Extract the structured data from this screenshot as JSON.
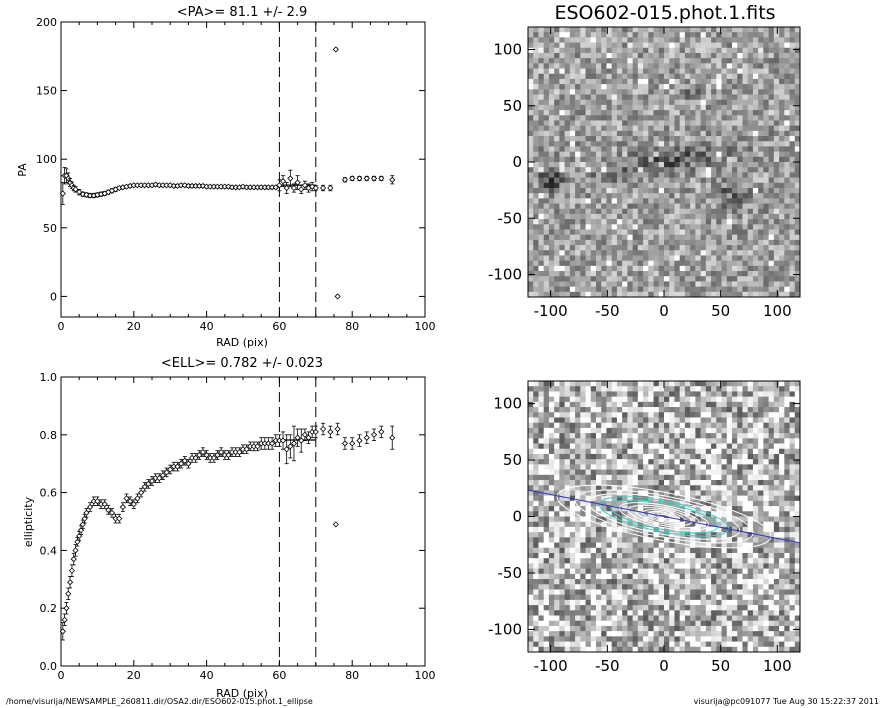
{
  "footer": {
    "left": "/home/visurija/NEWSAMPLE_260811.dir/OSA2.dir/ESO602-015.phot.1_ellipse",
    "right": "visurija@pc091077  Tue Aug 30 15:22:37 2011"
  },
  "colors": {
    "axis": "#000000",
    "marker": "#000000",
    "contour_cyan": "#40d0c8",
    "major_axis_line": "#3030c0"
  },
  "chart_data": [
    {
      "type": "scatter",
      "title": "<PA>=  81.1 +/-   2.9",
      "xlabel": "RAD (pix)",
      "ylabel": "PA",
      "xlim": [
        0,
        100
      ],
      "ylim": [
        -15,
        200
      ],
      "xticks": [
        0,
        20,
        40,
        60,
        80,
        100
      ],
      "yticks": [
        0,
        50,
        100,
        150,
        200
      ],
      "xtick_labels": [
        "0",
        "20",
        "40",
        "60",
        "80",
        "100"
      ],
      "ytick_labels": [
        "0",
        "50",
        "100",
        "150",
        "200"
      ],
      "vlines": [
        60,
        70
      ],
      "hline_segment": {
        "x": [
          60,
          70
        ],
        "y": 81.1
      },
      "series": [
        {
          "x": [
            0.5,
            1,
            1.5,
            2,
            2.5,
            3,
            3.5,
            4,
            5,
            6,
            7,
            8,
            9,
            10,
            11,
            12,
            13,
            14,
            15,
            16,
            17,
            18,
            19,
            20,
            21,
            22,
            23,
            24,
            25,
            26,
            27,
            28,
            29,
            30,
            31,
            32,
            33,
            34,
            35,
            36,
            37,
            38,
            39,
            40,
            41,
            42,
            43,
            44,
            45,
            46,
            47,
            48,
            49,
            50,
            51,
            52,
            53,
            54,
            55,
            56,
            57,
            58,
            59,
            60,
            61,
            62,
            63,
            64,
            65,
            66,
            67,
            68,
            69,
            70,
            72,
            74,
            75.5,
            76,
            78,
            80,
            82,
            84,
            86,
            88,
            91
          ],
          "y": [
            75,
            88,
            88,
            86,
            83,
            81,
            79,
            78,
            76,
            74.5,
            74,
            73.5,
            73.5,
            74,
            74.5,
            75,
            76,
            77,
            78,
            79,
            79.5,
            80,
            80.5,
            81,
            81,
            81,
            81,
            81,
            81,
            81.5,
            81,
            81,
            81,
            81,
            80.5,
            80.5,
            81,
            81,
            80.5,
            80.5,
            80.5,
            80.5,
            80.5,
            80,
            80,
            80,
            80,
            80,
            80,
            80,
            79.5,
            79.5,
            79.5,
            80,
            79.5,
            79.5,
            79.5,
            79.5,
            79.5,
            79.5,
            79.5,
            79.5,
            79.5,
            81,
            84,
            79,
            86,
            79,
            83,
            78,
            81,
            79,
            80,
            79,
            79,
            79,
            180,
            0,
            85,
            86,
            86,
            86,
            86,
            86,
            85
          ],
          "err": [
            8,
            6,
            5,
            4,
            3,
            2.5,
            2,
            2,
            2,
            1.5,
            1.5,
            1.5,
            1.5,
            1.5,
            1.5,
            1.5,
            1.5,
            1.5,
            1.5,
            1,
            1,
            1,
            1,
            1,
            1,
            1,
            1,
            1,
            1,
            1,
            1,
            1,
            1,
            1,
            1,
            1,
            1,
            1,
            1,
            1,
            1,
            1,
            1,
            1,
            1,
            1,
            1,
            1,
            1,
            1,
            1,
            1,
            1,
            1,
            1,
            1,
            1,
            1,
            1,
            1,
            1,
            1,
            1,
            4,
            4,
            4,
            6,
            3,
            5,
            3,
            3,
            3,
            3,
            2,
            2,
            2,
            0,
            0,
            1.5,
            1.5,
            1.5,
            1.5,
            1.5,
            1.5,
            3
          ]
        }
      ]
    },
    {
      "type": "scatter",
      "title": "<ELL>= 0.782 +/-  0.023",
      "xlabel": "RAD (pix)",
      "ylabel": "ellipticity",
      "xlim": [
        0,
        100
      ],
      "ylim": [
        0,
        1
      ],
      "xticks": [
        0,
        20,
        40,
        60,
        80,
        100
      ],
      "yticks": [
        0,
        0.2,
        0.4,
        0.6,
        0.8,
        1.0
      ],
      "xtick_labels": [
        "0",
        "20",
        "40",
        "60",
        "80",
        "100"
      ],
      "ytick_labels": [
        "0.0",
        "0.2",
        "0.4",
        "0.6",
        "0.8",
        "1.0"
      ],
      "vlines": [
        60,
        70
      ],
      "hline_segment": {
        "x": [
          60,
          70
        ],
        "y": 0.782
      },
      "series": [
        {
          "x": [
            0.5,
            1,
            1.5,
            2,
            2.5,
            3,
            3.5,
            4,
            4.5,
            5,
            5.5,
            6,
            6.5,
            7,
            8,
            9,
            10,
            11,
            12,
            13,
            14,
            15,
            16,
            17,
            18,
            19,
            20,
            21,
            22,
            23,
            24,
            25,
            26,
            27,
            28,
            29,
            30,
            31,
            32,
            33,
            34,
            35,
            36,
            37,
            38,
            39,
            40,
            41,
            42,
            43,
            44,
            45,
            46,
            47,
            48,
            49,
            50,
            51,
            52,
            53,
            54,
            55,
            56,
            57,
            58,
            59,
            60,
            61,
            62,
            63,
            64,
            65,
            66,
            67,
            68,
            69,
            70,
            72,
            74,
            75.5,
            76,
            78,
            80,
            82,
            84,
            86,
            88,
            91
          ],
          "y": [
            0.12,
            0.16,
            0.2,
            0.25,
            0.29,
            0.33,
            0.37,
            0.4,
            0.43,
            0.45,
            0.47,
            0.49,
            0.51,
            0.53,
            0.55,
            0.57,
            0.57,
            0.56,
            0.56,
            0.54,
            0.53,
            0.51,
            0.51,
            0.55,
            0.58,
            0.57,
            0.56,
            0.58,
            0.6,
            0.62,
            0.63,
            0.64,
            0.65,
            0.65,
            0.66,
            0.67,
            0.68,
            0.69,
            0.69,
            0.7,
            0.71,
            0.7,
            0.72,
            0.72,
            0.73,
            0.74,
            0.73,
            0.72,
            0.72,
            0.73,
            0.74,
            0.73,
            0.73,
            0.74,
            0.74,
            0.74,
            0.75,
            0.75,
            0.76,
            0.76,
            0.76,
            0.77,
            0.77,
            0.77,
            0.77,
            0.78,
            0.78,
            0.78,
            0.75,
            0.76,
            0.77,
            0.79,
            0.78,
            0.8,
            0.79,
            0.81,
            0.81,
            0.82,
            0.81,
            0.49,
            0.82,
            0.77,
            0.77,
            0.78,
            0.79,
            0.8,
            0.81,
            0.79
          ],
          "err": [
            0.03,
            0.02,
            0.02,
            0.02,
            0.02,
            0.02,
            0.02,
            0.02,
            0.015,
            0.015,
            0.015,
            0.015,
            0.015,
            0.015,
            0.015,
            0.015,
            0.015,
            0.015,
            0.015,
            0.015,
            0.015,
            0.015,
            0.015,
            0.015,
            0.015,
            0.015,
            0.015,
            0.015,
            0.015,
            0.015,
            0.015,
            0.015,
            0.015,
            0.015,
            0.015,
            0.015,
            0.015,
            0.015,
            0.015,
            0.015,
            0.015,
            0.015,
            0.015,
            0.015,
            0.015,
            0.015,
            0.015,
            0.015,
            0.015,
            0.015,
            0.015,
            0.015,
            0.015,
            0.015,
            0.015,
            0.015,
            0.015,
            0.015,
            0.015,
            0.015,
            0.015,
            0.02,
            0.02,
            0.02,
            0.02,
            0.02,
            0.02,
            0.03,
            0.05,
            0.04,
            0.06,
            0.03,
            0.04,
            0.02,
            0.02,
            0.02,
            0.02,
            0.02,
            0.02,
            0,
            0.02,
            0.02,
            0.02,
            0.02,
            0.02,
            0.02,
            0.02,
            0.04
          ]
        }
      ]
    },
    {
      "type": "heatmap",
      "title": "ESO602-015.phot.1.fits",
      "xlabel": "",
      "ylabel": "",
      "xlim": [
        -120,
        120
      ],
      "ylim": [
        -120,
        120
      ],
      "xticks": [
        -100,
        -50,
        0,
        50,
        100
      ],
      "yticks": [
        -100,
        -50,
        0,
        50,
        100
      ],
      "xtick_labels": [
        "-100",
        "-50",
        "0",
        "50",
        "100"
      ],
      "ytick_labels": [
        "-100",
        "-50",
        "0",
        "50",
        "100"
      ],
      "colormap": "greyscale"
    },
    {
      "type": "heatmap",
      "title": "",
      "xlabel": "",
      "ylabel": "",
      "xlim": [
        -120,
        120
      ],
      "ylim": [
        -120,
        120
      ],
      "xticks": [
        -100,
        -50,
        0,
        50,
        100
      ],
      "yticks": [
        -100,
        -50,
        0,
        50,
        100
      ],
      "xtick_labels": [
        "-100",
        "-50",
        "0",
        "50",
        "100"
      ],
      "ytick_labels": [
        "-100",
        "-50",
        "0",
        "50",
        "100"
      ],
      "colormap": "greyscale",
      "overlay": "isophote ellipses with major-axis line"
    }
  ]
}
